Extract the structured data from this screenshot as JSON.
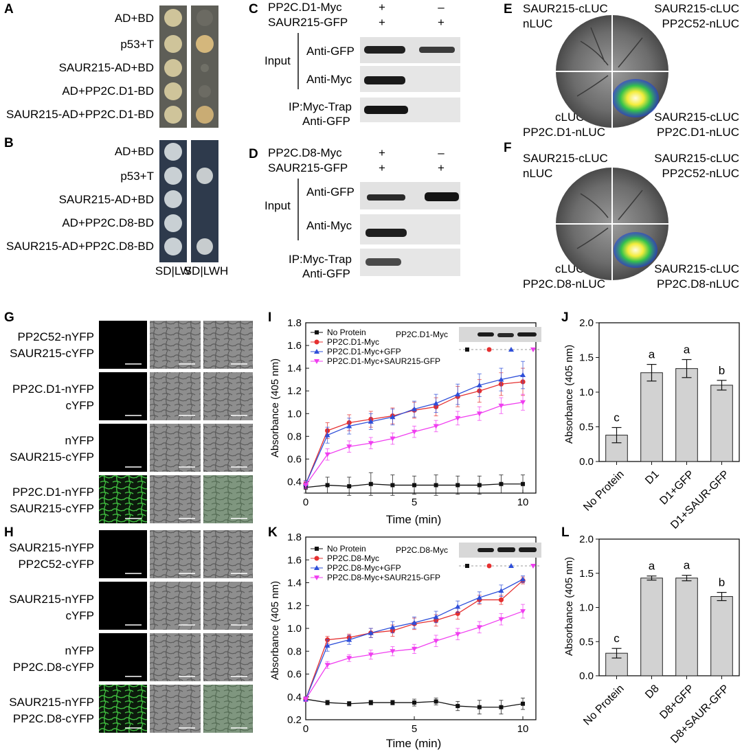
{
  "colors": {
    "no_protein": "#111111",
    "enzyme": "#e53030",
    "enzyme_gfp": "#2e4fd9",
    "enzyme_saur": "#f03ef0",
    "bar_fill": "#d2d2d2",
    "yfp_green": "#3fbf3f",
    "plate_yellow": "#cfc49a",
    "plate_blue": "#2e3a4c"
  },
  "panels": {
    "A": {
      "label": "A",
      "rows": [
        "AD+BD",
        "p53+T",
        "SAUR215-AD+BD",
        "AD+PP2C.D1-BD",
        "SAUR215-AD+PP2C.D1-BD"
      ]
    },
    "B": {
      "label": "B",
      "rows": [
        "AD+BD",
        "p53+T",
        "SAUR215-AD+BD",
        "AD+PP2C.D8-BD",
        "SAUR215-AD+PP2C.D8-BD"
      ],
      "col_labels": [
        "SD|LW",
        "SD|LWH"
      ]
    },
    "C": {
      "label": "C",
      "header": [
        "PP2C.D1-Myc",
        "SAUR215-GFP"
      ],
      "signs": [
        [
          "+",
          "–"
        ],
        [
          "+",
          "+"
        ]
      ],
      "group_label": "Input",
      "blots": [
        "Anti-GFP",
        "Anti-Myc"
      ],
      "ip_lines": [
        "IP:Myc-Trap",
        "Anti-GFP"
      ]
    },
    "D": {
      "label": "D",
      "header": [
        "PP2C.D8-Myc",
        "SAUR215-GFP"
      ],
      "signs": [
        [
          "+",
          "–"
        ],
        [
          "+",
          "+"
        ]
      ],
      "group_label": "Input",
      "blots": [
        "Anti-GFP",
        "Anti-Myc"
      ],
      "ip_lines": [
        "IP:Myc-Trap",
        "Anti-GFP"
      ]
    },
    "E": {
      "label": "E",
      "tl": [
        "SAUR215-cLUC",
        "nLUC"
      ],
      "tr": [
        "SAUR215-cLUC",
        "PP2C52-nLUC"
      ],
      "bl": [
        "cLUC",
        "PP2C.D1-nLUC"
      ],
      "br": [
        "SAUR215-cLUC",
        "PP2C.D1-nLUC"
      ]
    },
    "F": {
      "label": "F",
      "tl": [
        "SAUR215-cLUC",
        "nLUC"
      ],
      "tr": [
        "SAUR215-cLUC",
        "PP2C52-nLUC"
      ],
      "bl": [
        "cLUC",
        "PP2C.D8-nLUC"
      ],
      "br": [
        "SAUR215-cLUC",
        "PP2C.D8-nLUC"
      ]
    },
    "G": {
      "label": "G",
      "rows": [
        [
          "PP2C52-nYFP",
          "SAUR215-cYFP"
        ],
        [
          "PP2C.D1-nYFP",
          "cYFP"
        ],
        [
          "nYFP",
          "SAUR215-cYFP"
        ],
        [
          "PP2C.D1-nYFP",
          "SAUR215-cYFP"
        ]
      ]
    },
    "H": {
      "label": "H",
      "rows": [
        [
          "SAUR215-nYFP",
          "PP2C52-cYFP"
        ],
        [
          "SAUR215-nYFP",
          "cYFP"
        ],
        [
          "nYFP",
          "PP2C.D8-cYFP"
        ],
        [
          "SAUR215-nYFP",
          "PP2C.D8-cYFP"
        ]
      ]
    }
  },
  "chart_data": [
    {
      "id": "I",
      "type": "line",
      "label": "I",
      "xlabel": "Time (min)",
      "ylabel": "Absorbance (405 nm)",
      "xlim": [
        0,
        10.6
      ],
      "ylim": [
        0.3,
        1.8
      ],
      "xticks": [
        0,
        5,
        10
      ],
      "yticks": [
        0.4,
        0.6,
        0.8,
        1.0,
        1.2,
        1.4,
        1.6,
        1.8
      ],
      "ytick_labels": [
        "0.4",
        "0.6",
        "0.8",
        "1.0",
        "1.2",
        "1.4",
        "1.6",
        "1.8"
      ],
      "x": [
        0,
        1,
        2,
        3,
        4,
        5,
        6,
        7,
        8,
        9,
        10
      ],
      "blot_label": "PP2C.D1-Myc",
      "series": [
        {
          "name": "No Protein",
          "marker": "square",
          "color_key": "no_protein",
          "values": [
            0.35,
            0.37,
            0.36,
            0.38,
            0.37,
            0.37,
            0.37,
            0.37,
            0.37,
            0.38,
            0.38
          ],
          "err": [
            0.05,
            0.07,
            0.08,
            0.1,
            0.09,
            0.08,
            0.09,
            0.08,
            0.08,
            0.08,
            0.08
          ]
        },
        {
          "name": "PP2C.D1-Myc",
          "marker": "circle",
          "color_key": "enzyme",
          "values": [
            0.38,
            0.85,
            0.92,
            0.95,
            0.98,
            1.03,
            1.06,
            1.15,
            1.2,
            1.26,
            1.28
          ],
          "err": [
            0.03,
            0.07,
            0.07,
            0.07,
            0.07,
            0.07,
            0.08,
            0.09,
            0.1,
            0.1,
            0.12
          ]
        },
        {
          "name": "PP2C.D1-Myc+GFP",
          "marker": "triangle",
          "color_key": "enzyme_gfp",
          "values": [
            0.38,
            0.81,
            0.89,
            0.93,
            0.97,
            1.04,
            1.09,
            1.17,
            1.25,
            1.3,
            1.34
          ],
          "err": [
            0.03,
            0.07,
            0.07,
            0.07,
            0.07,
            0.07,
            0.08,
            0.09,
            0.1,
            0.1,
            0.12
          ]
        },
        {
          "name": "PP2C.D1-Myc+SAUR215-GFP",
          "marker": "triangle-down",
          "color_key": "enzyme_saur",
          "values": [
            0.37,
            0.64,
            0.71,
            0.74,
            0.78,
            0.84,
            0.89,
            0.96,
            1.0,
            1.07,
            1.1
          ],
          "err": [
            0.03,
            0.05,
            0.05,
            0.05,
            0.05,
            0.05,
            0.05,
            0.06,
            0.06,
            0.07,
            0.07
          ]
        }
      ]
    },
    {
      "id": "J",
      "type": "bar",
      "label": "J",
      "ylabel": "Absorbance (405 nm)",
      "ylim": [
        0,
        2.0
      ],
      "yticks": [
        0,
        0.5,
        1.0,
        1.5,
        2.0
      ],
      "ytick_labels": [
        "0.0",
        "0.5",
        "1.0",
        "1.5",
        "2.0"
      ],
      "categories": [
        "No Protein",
        "D1",
        "D1+GFP",
        "D1+SAUR-GFP"
      ],
      "values": [
        0.38,
        1.28,
        1.34,
        1.1
      ],
      "err": [
        0.11,
        0.12,
        0.13,
        0.07
      ],
      "letters": [
        "c",
        "a",
        "a",
        "b"
      ]
    },
    {
      "id": "K",
      "type": "line",
      "label": "K",
      "xlabel": "Time (min)",
      "ylabel": "Absorbance (405 nm)",
      "xlim": [
        0,
        10.6
      ],
      "ylim": [
        0.2,
        1.8
      ],
      "xticks": [
        0,
        5,
        10
      ],
      "yticks": [
        0.2,
        0.4,
        0.6,
        0.8,
        1.0,
        1.2,
        1.4,
        1.6,
        1.8
      ],
      "ytick_labels": [
        "0.2",
        "0.4",
        "0.6",
        "0.8",
        "1.0",
        "1.2",
        "1.4",
        "1.6",
        "1.8"
      ],
      "x": [
        0,
        1,
        2,
        3,
        4,
        5,
        6,
        7,
        8,
        9,
        10
      ],
      "blot_label": "PP2C.D8-Myc",
      "series": [
        {
          "name": "No Protein",
          "marker": "square",
          "color_key": "no_protein",
          "values": [
            0.38,
            0.35,
            0.34,
            0.35,
            0.35,
            0.35,
            0.36,
            0.32,
            0.31,
            0.31,
            0.34
          ],
          "err": [
            0.02,
            0.02,
            0.02,
            0.02,
            0.02,
            0.03,
            0.03,
            0.04,
            0.06,
            0.06,
            0.05
          ]
        },
        {
          "name": "PP2C.D8-Myc",
          "marker": "circle",
          "color_key": "enzyme",
          "values": [
            0.38,
            0.9,
            0.92,
            0.96,
            0.98,
            1.04,
            1.07,
            1.13,
            1.25,
            1.25,
            1.42
          ],
          "err": [
            0.02,
            0.03,
            0.03,
            0.04,
            0.05,
            0.05,
            0.05,
            0.05,
            0.04,
            0.04,
            0.03
          ]
        },
        {
          "name": "PP2C.D8-Myc+GFP",
          "marker": "triangle",
          "color_key": "enzyme_gfp",
          "values": [
            0.38,
            0.85,
            0.9,
            0.96,
            1.01,
            1.05,
            1.1,
            1.19,
            1.27,
            1.33,
            1.43
          ],
          "err": [
            0.02,
            0.05,
            0.04,
            0.04,
            0.05,
            0.05,
            0.05,
            0.05,
            0.05,
            0.05,
            0.03
          ]
        },
        {
          "name": "PP2C.D8-Myc+SAUR215-GFP",
          "marker": "triangle-down",
          "color_key": "enzyme_saur",
          "values": [
            0.38,
            0.68,
            0.74,
            0.77,
            0.8,
            0.82,
            0.89,
            0.95,
            1.01,
            1.08,
            1.15
          ],
          "err": [
            0.02,
            0.03,
            0.03,
            0.04,
            0.04,
            0.04,
            0.05,
            0.05,
            0.05,
            0.05,
            0.06
          ]
        }
      ]
    },
    {
      "id": "L",
      "type": "bar",
      "label": "L",
      "ylabel": "Absorbance (405 nm)",
      "ylim": [
        0,
        2.0
      ],
      "yticks": [
        0,
        0.5,
        1.0,
        1.5,
        2.0
      ],
      "ytick_labels": [
        "0.0",
        "0.5",
        "1.0",
        "1.5",
        "2.0"
      ],
      "categories": [
        "No Protein",
        "D8",
        "D8+GFP",
        "D8+SAUR-GFP"
      ],
      "values": [
        0.33,
        1.43,
        1.43,
        1.16
      ],
      "err": [
        0.07,
        0.03,
        0.04,
        0.06
      ],
      "letters": [
        "c",
        "a",
        "a",
        "b"
      ]
    }
  ]
}
